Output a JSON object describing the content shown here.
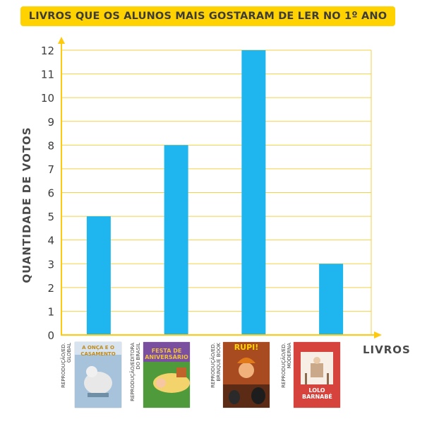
{
  "chart_data": {
    "type": "bar",
    "title": "LIVROS QUE OS ALUNOS MAIS GOSTARAM DE LER NO 1º ANO",
    "xlabel": "LIVROS",
    "ylabel": "QUANTIDADE DE VOTOS",
    "categories": [
      "",
      "",
      "",
      ""
    ],
    "values": [
      5,
      8,
      12,
      3
    ],
    "ylim": [
      0,
      12
    ],
    "yticks": [
      "0",
      "1",
      "2",
      "3",
      "4",
      "5",
      "6",
      "7",
      "8",
      "9",
      "10",
      "11",
      "12"
    ],
    "grid": true,
    "colors": {
      "bar": "#1fb6ef",
      "grid": "#f2d24a",
      "axis": "#ffc90e",
      "title_bg": "#ffd200"
    }
  },
  "covers": [
    {
      "credit": "REPRODUÇÃO/ED. GLOBAL",
      "title": "A ONÇA E O CASAMENTO",
      "bg": "#8fb6d6"
    },
    {
      "credit": "REPRODUÇÃO/EDITORA DO BRASIL",
      "title": "FESTA DE ANIVERSÁRIO",
      "bg": "#5a9c3c"
    },
    {
      "credit": "REPRODUÇÃO/ED. BRINQUE BOOK",
      "title": "RUPI!",
      "bg": "#c24a22"
    },
    {
      "credit": "REPRODUÇÃO/ED. MODERNA",
      "title": "LOLO BARNABÉ",
      "bg": "#d9443f"
    }
  ]
}
